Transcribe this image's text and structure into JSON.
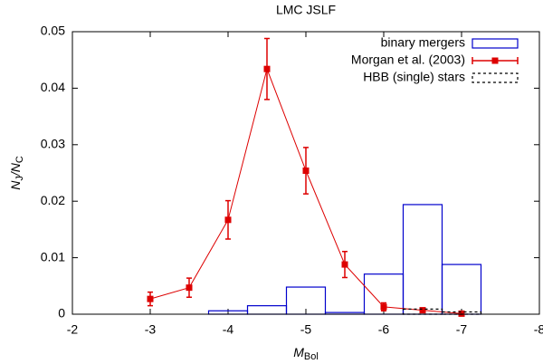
{
  "chart_data": {
    "type": "histogram",
    "title": "LMC JSLF",
    "xlabel": [
      "M",
      "Bol"
    ],
    "ylabel": [
      "N",
      "J",
      "/N",
      "C"
    ],
    "xlim": [
      -2,
      -8
    ],
    "xticks": [
      -2,
      -3,
      -4,
      -5,
      -6,
      -7,
      -8
    ],
    "ylim": [
      0,
      0.05
    ],
    "yticks": [
      0,
      0.01,
      0.02,
      0.03,
      0.04,
      0.05
    ],
    "legend": "top-right",
    "series": [
      {
        "name": "binary mergers",
        "type": "histogram",
        "color": "#0000cc",
        "bins": [
          -3.75,
          -4.25,
          -4.75,
          -5.25,
          -5.75,
          -6.25,
          -6.75,
          -7.25
        ],
        "values": [
          0.0006,
          0.0015,
          0.0048,
          0.0003,
          0.0071,
          0.0194,
          0.0088
        ]
      },
      {
        "name": "Morgan et al. (2003)",
        "type": "line",
        "color": "#dd0000",
        "x": [
          -3,
          -3.5,
          -4,
          -4.5,
          -5,
          -5.5,
          -6,
          -6.5,
          -7
        ],
        "values": [
          0.0027,
          0.0047,
          0.0167,
          0.0434,
          0.0254,
          0.0088,
          0.0013,
          0.0007,
          0.0001
        ],
        "errors": [
          0.0012,
          0.0017,
          0.0034,
          0.0054,
          0.0041,
          0.0023,
          0.0007,
          0.0004,
          0.0001
        ]
      },
      {
        "name": "HBB (single) stars",
        "type": "histogram",
        "color": "#000000",
        "dashed": true,
        "bins": [
          -6.25,
          -6.75,
          -7.25
        ],
        "values": [
          0.0009,
          0.0004
        ]
      }
    ]
  }
}
